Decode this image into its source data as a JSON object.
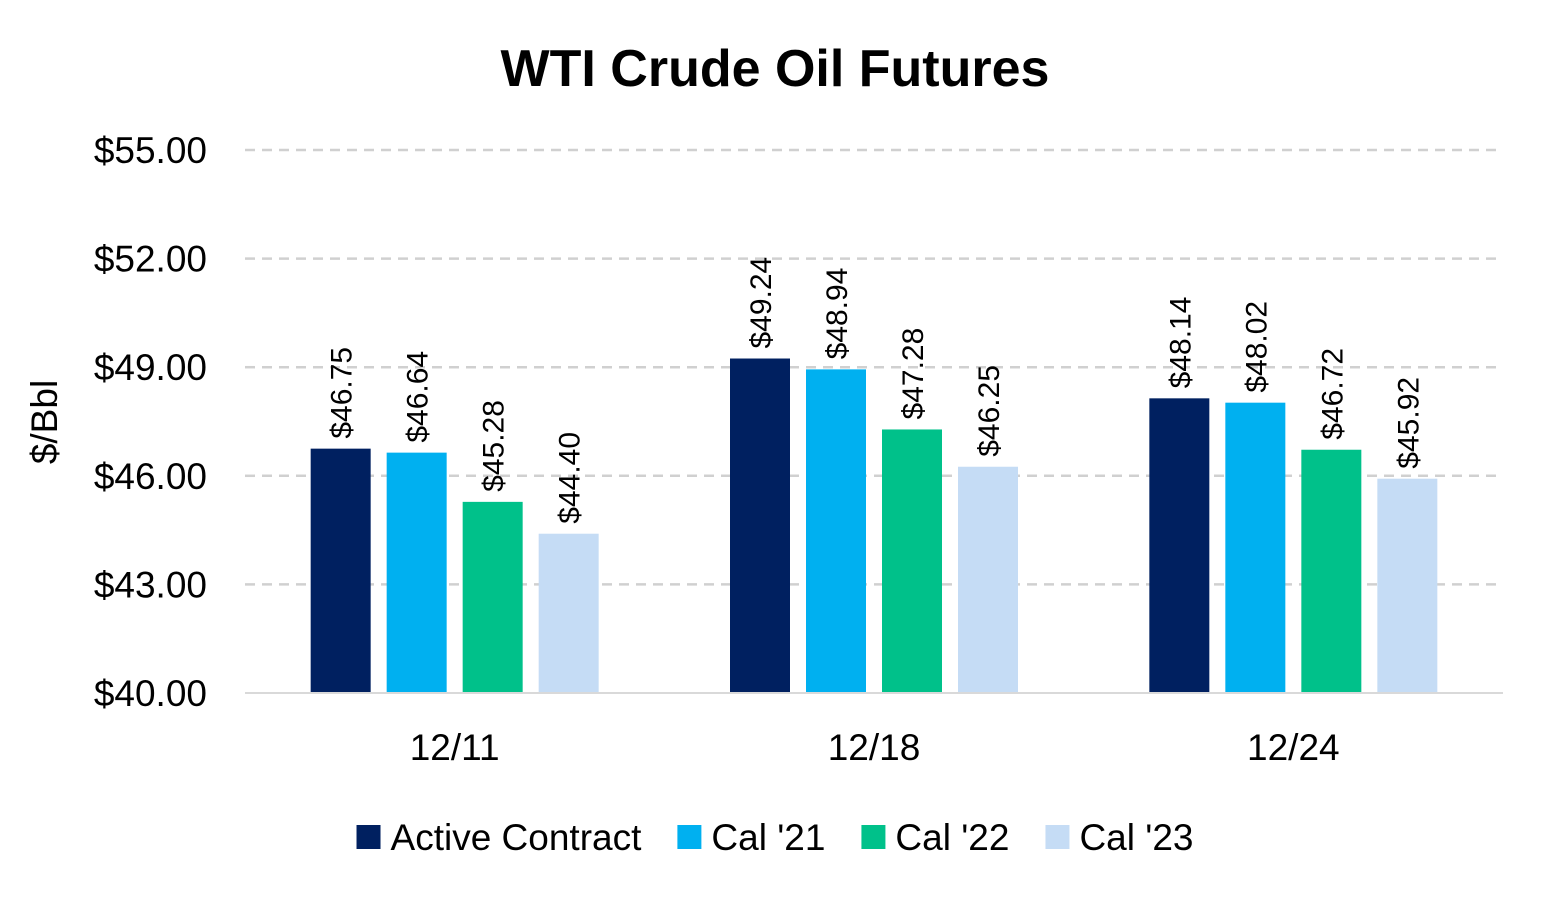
{
  "chart_data": {
    "type": "bar",
    "title": "WTI Crude Oil Futures",
    "xlabel": "",
    "ylabel": "$/Bbl",
    "categories": [
      "12/11",
      "12/18",
      "12/24"
    ],
    "y_ticks": [
      "$40.00",
      "$43.00",
      "$46.00",
      "$49.00",
      "$52.00",
      "$55.00"
    ],
    "ylim": [
      40,
      55
    ],
    "grid": true,
    "legend_position": "bottom",
    "series": [
      {
        "name": "Active Contract",
        "color": "#002060",
        "values": [
          46.75,
          49.24,
          48.14
        ],
        "labels": [
          "$46.75",
          "$49.24",
          "$48.14"
        ]
      },
      {
        "name": "Cal '21",
        "color": "#00B0F0",
        "values": [
          46.64,
          48.94,
          48.02
        ],
        "labels": [
          "$46.64",
          "$48.94",
          "$48.02"
        ]
      },
      {
        "name": "Cal '22",
        "color": "#00C18A",
        "values": [
          45.28,
          47.28,
          46.72
        ],
        "labels": [
          "$45.28",
          "$47.28",
          "$46.72"
        ]
      },
      {
        "name": "Cal '23",
        "color": "#C5DCF5",
        "values": [
          44.4,
          46.25,
          45.92
        ],
        "labels": [
          "$44.40",
          "$46.25",
          "$45.92"
        ]
      }
    ]
  }
}
